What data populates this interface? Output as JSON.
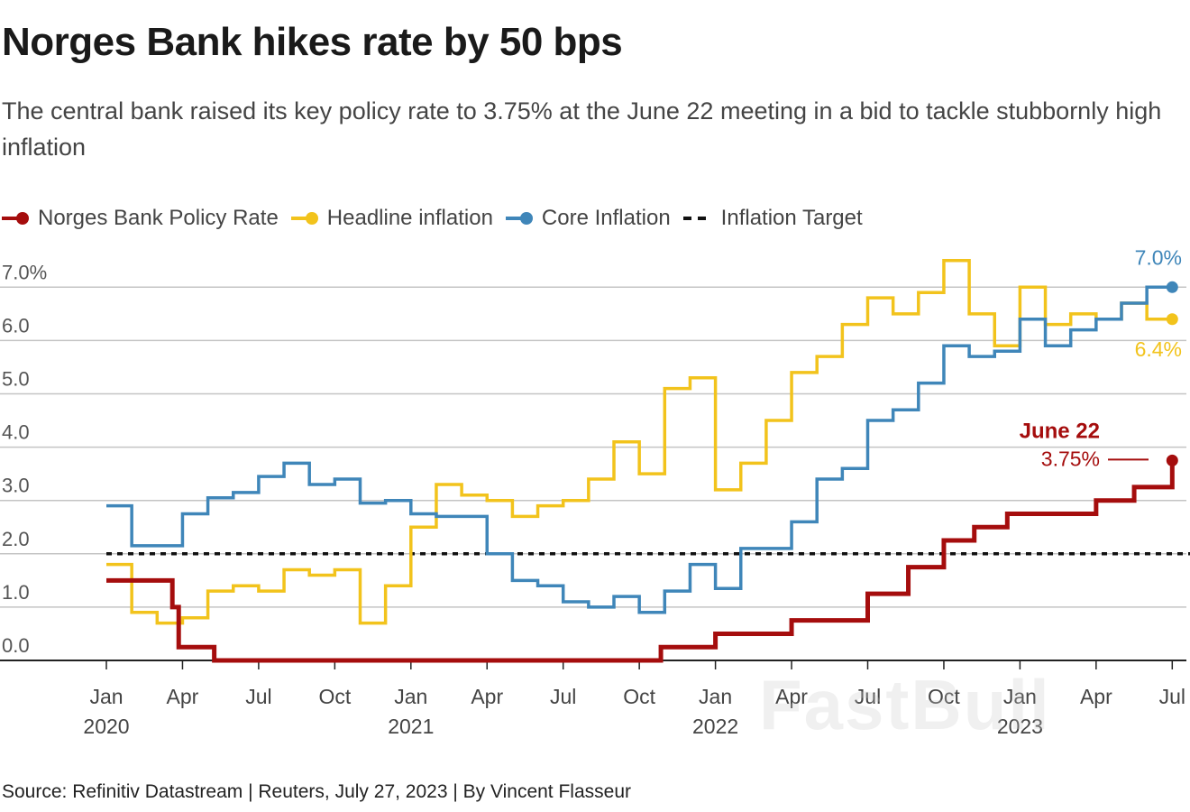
{
  "title": "Norges Bank hikes rate by 50 bps",
  "subtitle": "The central bank raised its key policy rate to 3.75% at the June 22 meeting in a bid to tackle stubbornly high inflation",
  "source": "Source: Refinitiv Datastream | Reuters, July 27, 2023 | By Vincent Flasseur",
  "watermark": "FastBull",
  "legend": [
    {
      "label": "Norges Bank Policy Rate",
      "color": "#a50d0d",
      "style": "line-dot"
    },
    {
      "label": "Headline inflation",
      "color": "#f2c31c",
      "style": "line-dot"
    },
    {
      "label": "Core Inflation",
      "color": "#3f86b9",
      "style": "line-dot"
    },
    {
      "label": "Inflation Target",
      "color": "#111111",
      "style": "dashed"
    }
  ],
  "chart_data": {
    "type": "line",
    "step": true,
    "x_start": "2020-01",
    "ylim": [
      0,
      7.5
    ],
    "yticks": [
      {
        "value": 0,
        "label": "0.0"
      },
      {
        "value": 1,
        "label": "1.0"
      },
      {
        "value": 2,
        "label": "2.0"
      },
      {
        "value": 3,
        "label": "3.0"
      },
      {
        "value": 4,
        "label": "4.0"
      },
      {
        "value": 5,
        "label": "5.0"
      },
      {
        "value": 6,
        "label": "6.0"
      },
      {
        "value": 7,
        "label": "7.0%"
      }
    ],
    "xticks": [
      {
        "month_index": 0,
        "label": "Jan",
        "year": "2020"
      },
      {
        "month_index": 3,
        "label": "Apr",
        "year": ""
      },
      {
        "month_index": 6,
        "label": "Jul",
        "year": ""
      },
      {
        "month_index": 9,
        "label": "Oct",
        "year": ""
      },
      {
        "month_index": 12,
        "label": "Jan",
        "year": "2021"
      },
      {
        "month_index": 15,
        "label": "Apr",
        "year": ""
      },
      {
        "month_index": 18,
        "label": "Jul",
        "year": ""
      },
      {
        "month_index": 21,
        "label": "Oct",
        "year": ""
      },
      {
        "month_index": 24,
        "label": "Jan",
        "year": "2022"
      },
      {
        "month_index": 27,
        "label": "Apr",
        "year": ""
      },
      {
        "month_index": 30,
        "label": "Jul",
        "year": ""
      },
      {
        "month_index": 33,
        "label": "Oct",
        "year": ""
      },
      {
        "month_index": 36,
        "label": "Jan",
        "year": "2023"
      },
      {
        "month_index": 39,
        "label": "Apr",
        "year": ""
      },
      {
        "month_index": 42,
        "label": "Jul",
        "year": ""
      }
    ],
    "series": [
      {
        "name": "Norges Bank Policy Rate",
        "color": "#a50d0d",
        "points": [
          [
            0,
            1.5
          ],
          [
            2.5,
            1.5
          ],
          [
            2.6,
            1.0
          ],
          [
            2.85,
            0.25
          ],
          [
            4.2,
            0.25
          ],
          [
            4.25,
            0
          ],
          [
            21.8,
            0
          ],
          [
            21.85,
            0.25
          ],
          [
            24.0,
            0.5
          ],
          [
            26.5,
            0.5
          ],
          [
            27.0,
            0.75
          ],
          [
            29.8,
            0.75
          ],
          [
            30.0,
            1.25
          ],
          [
            31.5,
            1.25
          ],
          [
            31.6,
            1.75
          ],
          [
            32.8,
            1.75
          ],
          [
            33.0,
            2.25
          ],
          [
            34.0,
            2.25
          ],
          [
            34.2,
            2.5
          ],
          [
            35.3,
            2.5
          ],
          [
            35.5,
            2.75
          ],
          [
            38.8,
            2.75
          ],
          [
            39.0,
            3.0
          ],
          [
            40.3,
            3.0
          ],
          [
            40.5,
            3.25
          ],
          [
            41.9,
            3.25
          ],
          [
            42.0,
            3.75
          ]
        ],
        "end_label_title": "June 22",
        "end_label": "3.75%"
      },
      {
        "name": "Headline inflation",
        "color": "#f2c31c",
        "points": [
          [
            0,
            1.8
          ],
          [
            1,
            0.9
          ],
          [
            2,
            0.7
          ],
          [
            3,
            0.8
          ],
          [
            4,
            1.3
          ],
          [
            5,
            1.4
          ],
          [
            6,
            1.3
          ],
          [
            7,
            1.7
          ],
          [
            8,
            1.6
          ],
          [
            9,
            1.7
          ],
          [
            10,
            0.7
          ],
          [
            11,
            1.4
          ],
          [
            12,
            2.5
          ],
          [
            13,
            3.3
          ],
          [
            14,
            3.1
          ],
          [
            15,
            3.0
          ],
          [
            16,
            2.7
          ],
          [
            17,
            2.9
          ],
          [
            18,
            3.0
          ],
          [
            19,
            3.4
          ],
          [
            20,
            4.1
          ],
          [
            21,
            3.5
          ],
          [
            22,
            5.1
          ],
          [
            23,
            5.3
          ],
          [
            24,
            3.2
          ],
          [
            25,
            3.7
          ],
          [
            26,
            4.5
          ],
          [
            27,
            5.4
          ],
          [
            28,
            5.7
          ],
          [
            29,
            6.3
          ],
          [
            30,
            6.8
          ],
          [
            31,
            6.5
          ],
          [
            32,
            6.9
          ],
          [
            33,
            7.5
          ],
          [
            34,
            6.5
          ],
          [
            35,
            5.9
          ],
          [
            36,
            7.0
          ],
          [
            37,
            6.3
          ],
          [
            38,
            6.5
          ],
          [
            39,
            6.4
          ],
          [
            40,
            6.7
          ],
          [
            41,
            6.4
          ],
          [
            42,
            6.4
          ]
        ],
        "end_label": "6.4%"
      },
      {
        "name": "Core Inflation",
        "color": "#3f86b9",
        "points": [
          [
            0,
            2.9
          ],
          [
            1,
            2.15
          ],
          [
            2,
            2.15
          ],
          [
            3,
            2.75
          ],
          [
            4,
            3.05
          ],
          [
            5,
            3.15
          ],
          [
            6,
            3.45
          ],
          [
            7,
            3.7
          ],
          [
            8,
            3.3
          ],
          [
            9,
            3.4
          ],
          [
            10,
            2.95
          ],
          [
            11,
            3.0
          ],
          [
            12,
            2.75
          ],
          [
            13,
            2.7
          ],
          [
            14,
            2.7
          ],
          [
            15,
            2.0
          ],
          [
            16,
            1.5
          ],
          [
            17,
            1.4
          ],
          [
            18,
            1.1
          ],
          [
            19,
            1.0
          ],
          [
            20,
            1.2
          ],
          [
            21,
            0.9
          ],
          [
            22,
            1.3
          ],
          [
            23,
            1.8
          ],
          [
            24,
            1.35
          ],
          [
            25,
            2.1
          ],
          [
            26,
            2.1
          ],
          [
            27,
            2.6
          ],
          [
            28,
            3.4
          ],
          [
            29,
            3.6
          ],
          [
            30,
            4.5
          ],
          [
            31,
            4.7
          ],
          [
            32,
            5.2
          ],
          [
            33,
            5.9
          ],
          [
            34,
            5.7
          ],
          [
            35,
            5.8
          ],
          [
            36,
            6.4
          ],
          [
            37,
            5.9
          ],
          [
            38,
            6.2
          ],
          [
            39,
            6.4
          ],
          [
            40,
            6.7
          ],
          [
            41,
            7.0
          ],
          [
            42,
            7.0
          ]
        ],
        "end_label": "7.0%"
      },
      {
        "name": "Inflation Target",
        "color": "#111111",
        "dashed": true,
        "points": [
          [
            0,
            2.0
          ],
          [
            42.7,
            2.0
          ]
        ]
      }
    ]
  }
}
